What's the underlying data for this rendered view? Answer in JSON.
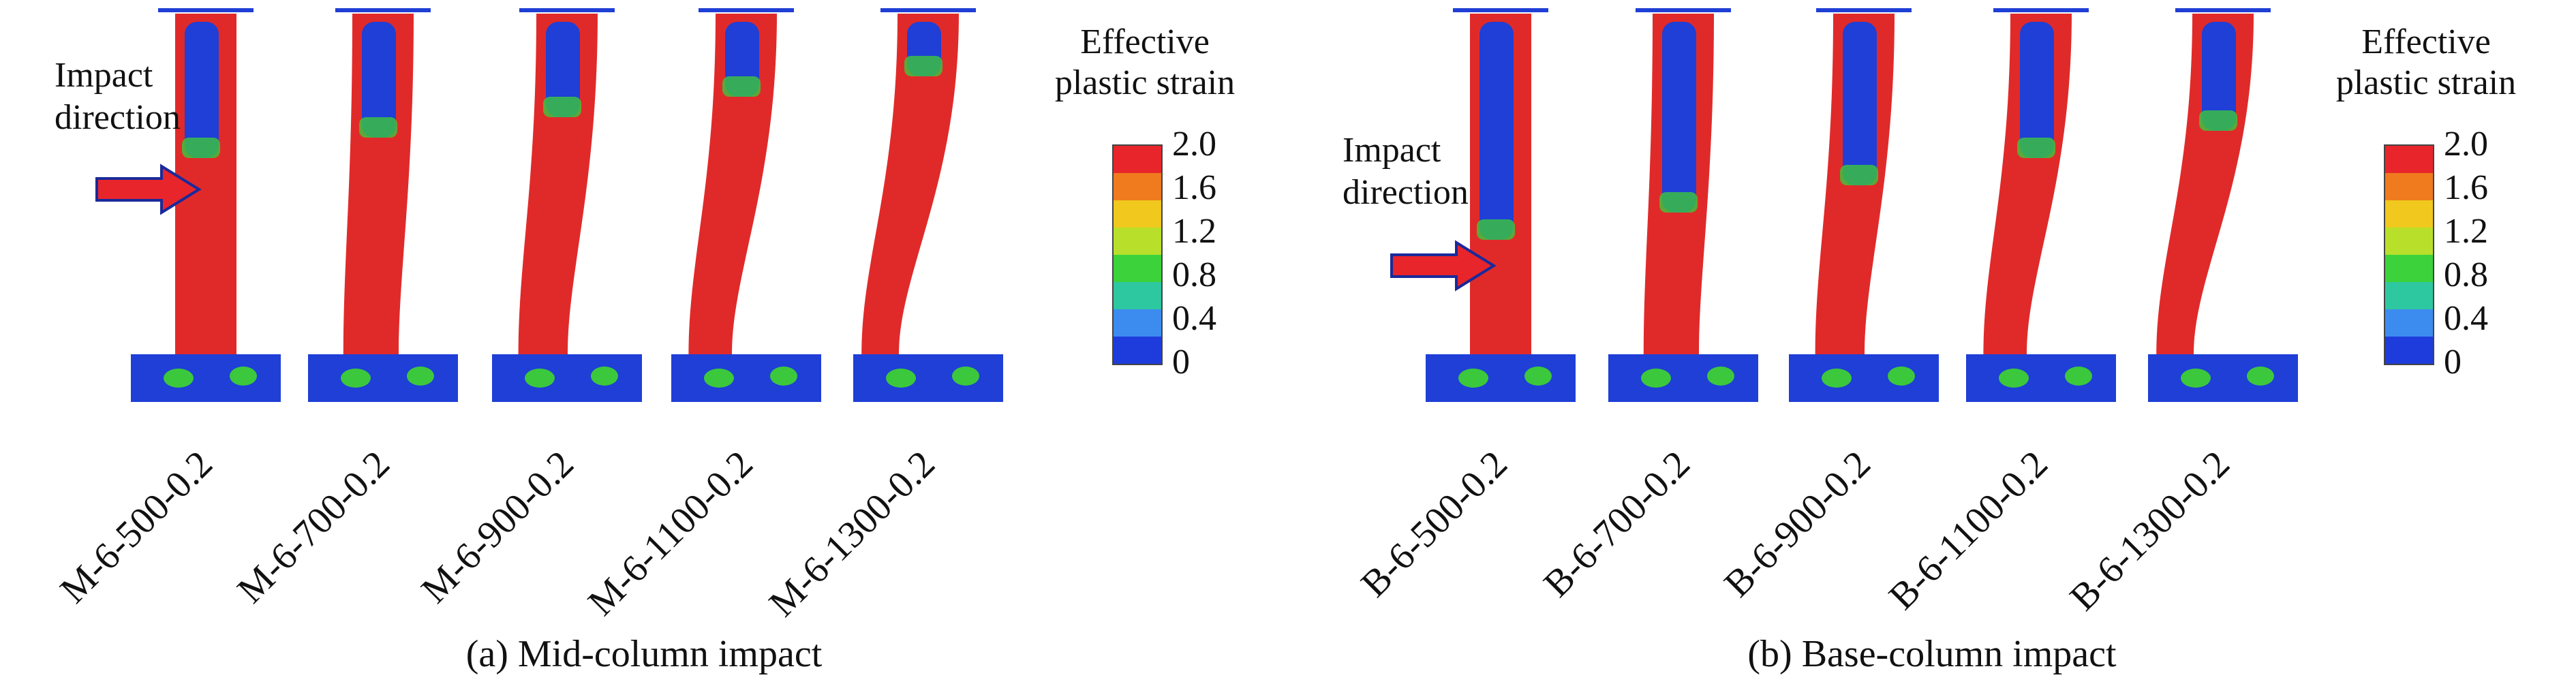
{
  "panels": [
    {
      "caption": "(a) Mid-column impact",
      "impact_label": [
        "Impact",
        "direction"
      ],
      "legend_title": [
        "Effective",
        "plastic strain"
      ],
      "legend_ticks": [
        "2.0",
        "1.6",
        "1.2",
        "0.8",
        "0.4",
        "0"
      ],
      "specimens": [
        "M-6-500-0.2",
        "M-6-700-0.2",
        "M-6-900-0.2",
        "M-6-1100-0.2",
        "M-6-1300-0.2"
      ]
    },
    {
      "caption": "(b) Base-column impact",
      "impact_label": [
        "Impact",
        "direction"
      ],
      "legend_title": [
        "Effective",
        "plastic strain"
      ],
      "legend_ticks": [
        "2.0",
        "1.6",
        "1.2",
        "0.8",
        "0.4",
        "0"
      ],
      "specimens": [
        "B-6-500-0.2",
        "B-6-700-0.2",
        "B-6-900-0.2",
        "B-6-1100-0.2",
        "B-6-1300-0.2"
      ]
    }
  ],
  "legend_colors": [
    "#e8252b",
    "#f07a1e",
    "#f0c81e",
    "#b8e02a",
    "#3cd23c",
    "#2ec8a0",
    "#3c8cf0",
    "#1e3cdc"
  ],
  "colors": {
    "strain_high": "#e02a2a",
    "strain_low": "#1f3fd6",
    "strain_mid": "#3cc83c",
    "arrow": "#e8252b",
    "arrow_outline": "#1a2a9a"
  }
}
